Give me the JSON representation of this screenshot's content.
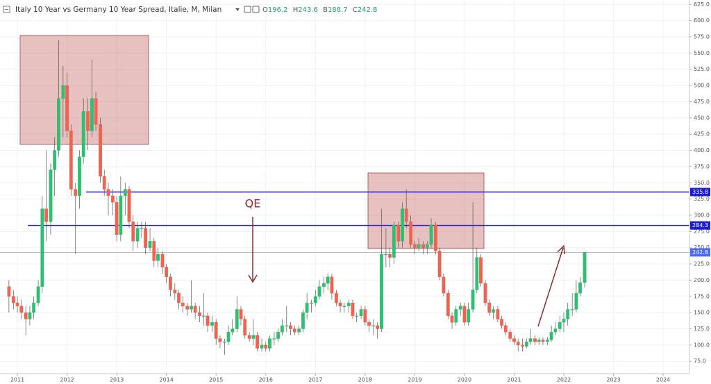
{
  "chart_data": {
    "type": "candlestick",
    "title": "Italy 10 Year vs Germany 10 Year Spread, Italie, M, Milan",
    "ohlc_labels": [
      "O",
      "H",
      "B",
      "C"
    ],
    "ohlc_values": [
      196.2,
      243.6,
      188.7,
      242.8
    ],
    "annotation": "QE",
    "colors": {
      "up": "#2fbf71",
      "down": "#ee6352",
      "wick": "#555555",
      "level": "#1c1cd6",
      "last": "#b0b0b0"
    },
    "x": [
      2010.83,
      2010.92,
      2011.0,
      2011.08,
      2011.17,
      2011.25,
      2011.33,
      2011.42,
      2011.5,
      2011.58,
      2011.67,
      2011.75,
      2011.83,
      2011.92,
      2012.0,
      2012.08,
      2012.17,
      2012.25,
      2012.33,
      2012.42,
      2012.5,
      2012.58,
      2012.67,
      2012.75,
      2012.83,
      2012.92,
      2013.0,
      2013.08,
      2013.17,
      2013.25,
      2013.33,
      2013.42,
      2013.5,
      2013.58,
      2013.67,
      2013.75,
      2013.83,
      2013.92,
      2014.0,
      2014.08,
      2014.17,
      2014.25,
      2014.33,
      2014.42,
      2014.5,
      2014.58,
      2014.67,
      2014.75,
      2014.83,
      2014.92,
      2015.0,
      2015.08,
      2015.17,
      2015.25,
      2015.33,
      2015.42,
      2015.5,
      2015.58,
      2015.67,
      2015.75,
      2015.83,
      2015.92,
      2016.0,
      2016.08,
      2016.17,
      2016.25,
      2016.33,
      2016.42,
      2016.5,
      2016.58,
      2016.67,
      2016.75,
      2016.83,
      2016.92,
      2017.0,
      2017.08,
      2017.17,
      2017.25,
      2017.33,
      2017.42,
      2017.5,
      2017.58,
      2017.67,
      2017.75,
      2017.83,
      2017.92,
      2018.0,
      2018.08,
      2018.17,
      2018.25,
      2018.33,
      2018.42,
      2018.5,
      2018.58,
      2018.67,
      2018.75,
      2018.83,
      2018.92,
      2019.0,
      2019.08,
      2019.17,
      2019.25,
      2019.33,
      2019.42,
      2019.5,
      2019.58,
      2019.67,
      2019.75,
      2019.83,
      2019.92,
      2020.0,
      2020.08,
      2020.17,
      2020.25,
      2020.33,
      2020.42,
      2020.5,
      2020.58,
      2020.67,
      2020.75,
      2020.83,
      2020.92,
      2021.0,
      2021.08,
      2021.17,
      2021.25,
      2021.33,
      2021.42,
      2021.5,
      2021.58,
      2021.67,
      2021.75,
      2021.83,
      2021.92,
      2022.0,
      2022.08,
      2022.17,
      2022.25,
      2022.33,
      2022.42
    ],
    "candles": [
      [
        190,
        200,
        150,
        175
      ],
      [
        175,
        185,
        155,
        165
      ],
      [
        165,
        175,
        150,
        160
      ],
      [
        160,
        170,
        140,
        150
      ],
      [
        150,
        160,
        115,
        140
      ],
      [
        140,
        160,
        130,
        150
      ],
      [
        150,
        175,
        140,
        165
      ],
      [
        165,
        200,
        160,
        190
      ],
      [
        190,
        330,
        180,
        310
      ],
      [
        310,
        400,
        260,
        290
      ],
      [
        290,
        380,
        270,
        370
      ],
      [
        370,
        420,
        330,
        400
      ],
      [
        400,
        570,
        390,
        480
      ],
      [
        480,
        530,
        420,
        500
      ],
      [
        500,
        520,
        420,
        430
      ],
      [
        430,
        440,
        330,
        340
      ],
      [
        340,
        350,
        240,
        330
      ],
      [
        330,
        400,
        310,
        390
      ],
      [
        390,
        480,
        380,
        460
      ],
      [
        460,
        480,
        400,
        430
      ],
      [
        430,
        540,
        420,
        480
      ],
      [
        480,
        490,
        430,
        440
      ],
      [
        440,
        450,
        350,
        360
      ],
      [
        360,
        370,
        330,
        340
      ],
      [
        340,
        350,
        300,
        330
      ],
      [
        330,
        340,
        300,
        320
      ],
      [
        320,
        330,
        260,
        270
      ],
      [
        270,
        360,
        260,
        330
      ],
      [
        330,
        350,
        300,
        340
      ],
      [
        340,
        345,
        280,
        290
      ],
      [
        290,
        300,
        245,
        260
      ],
      [
        260,
        290,
        250,
        280
      ],
      [
        280,
        290,
        265,
        280
      ],
      [
        280,
        290,
        240,
        250
      ],
      [
        250,
        280,
        245,
        260
      ],
      [
        260,
        265,
        220,
        230
      ],
      [
        230,
        250,
        220,
        240
      ],
      [
        240,
        245,
        210,
        220
      ],
      [
        220,
        225,
        195,
        205
      ],
      [
        205,
        210,
        175,
        185
      ],
      [
        185,
        195,
        170,
        180
      ],
      [
        180,
        185,
        155,
        165
      ],
      [
        165,
        175,
        150,
        160
      ],
      [
        160,
        165,
        145,
        155
      ],
      [
        155,
        200,
        150,
        160
      ],
      [
        160,
        165,
        140,
        150
      ],
      [
        150,
        160,
        135,
        145
      ],
      [
        145,
        180,
        130,
        145
      ],
      [
        145,
        150,
        120,
        130
      ],
      [
        130,
        145,
        120,
        135
      ],
      [
        135,
        140,
        100,
        110
      ],
      [
        110,
        115,
        95,
        105
      ],
      [
        105,
        110,
        85,
        105
      ],
      [
        105,
        130,
        100,
        120
      ],
      [
        120,
        140,
        115,
        125
      ],
      [
        125,
        175,
        120,
        155
      ],
      [
        155,
        160,
        130,
        140
      ],
      [
        140,
        145,
        110,
        115
      ],
      [
        115,
        120,
        105,
        110
      ],
      [
        110,
        140,
        100,
        115
      ],
      [
        115,
        120,
        90,
        95
      ],
      [
        95,
        110,
        90,
        100
      ],
      [
        100,
        105,
        90,
        95
      ],
      [
        95,
        115,
        90,
        110
      ],
      [
        110,
        120,
        100,
        110
      ],
      [
        110,
        125,
        105,
        120
      ],
      [
        120,
        140,
        115,
        130
      ],
      [
        130,
        160,
        120,
        130
      ],
      [
        130,
        135,
        115,
        125
      ],
      [
        125,
        130,
        115,
        120
      ],
      [
        120,
        130,
        115,
        125
      ],
      [
        125,
        155,
        120,
        150
      ],
      [
        150,
        180,
        140,
        165
      ],
      [
        165,
        170,
        150,
        165
      ],
      [
        165,
        185,
        160,
        175
      ],
      [
        175,
        200,
        170,
        190
      ],
      [
        190,
        205,
        180,
        195
      ],
      [
        195,
        210,
        185,
        205
      ],
      [
        205,
        210,
        170,
        180
      ],
      [
        180,
        185,
        160,
        165
      ],
      [
        165,
        170,
        150,
        160
      ],
      [
        160,
        165,
        150,
        160
      ],
      [
        160,
        170,
        150,
        165
      ],
      [
        165,
        170,
        140,
        145
      ],
      [
        145,
        150,
        135,
        145
      ],
      [
        145,
        160,
        140,
        155
      ],
      [
        155,
        160,
        130,
        135
      ],
      [
        135,
        140,
        120,
        130
      ],
      [
        130,
        140,
        115,
        130
      ],
      [
        130,
        135,
        110,
        125
      ],
      [
        125,
        310,
        120,
        240
      ],
      [
        240,
        280,
        220,
        240
      ],
      [
        240,
        250,
        220,
        235
      ],
      [
        235,
        290,
        225,
        285
      ],
      [
        285,
        290,
        250,
        260
      ],
      [
        260,
        320,
        250,
        310
      ],
      [
        310,
        340,
        280,
        290
      ],
      [
        290,
        300,
        250,
        255
      ],
      [
        255,
        260,
        240,
        250
      ],
      [
        250,
        265,
        245,
        255
      ],
      [
        255,
        260,
        240,
        250
      ],
      [
        250,
        260,
        240,
        255
      ],
      [
        255,
        295,
        250,
        285
      ],
      [
        285,
        290,
        240,
        245
      ],
      [
        245,
        250,
        200,
        205
      ],
      [
        205,
        210,
        175,
        180
      ],
      [
        180,
        185,
        140,
        145
      ],
      [
        145,
        150,
        125,
        135
      ],
      [
        135,
        160,
        130,
        155
      ],
      [
        155,
        165,
        145,
        160
      ],
      [
        160,
        165,
        130,
        135
      ],
      [
        135,
        165,
        130,
        155
      ],
      [
        155,
        320,
        150,
        185
      ],
      [
        185,
        250,
        180,
        235
      ],
      [
        235,
        240,
        190,
        195
      ],
      [
        195,
        200,
        160,
        165
      ],
      [
        165,
        170,
        145,
        150
      ],
      [
        150,
        160,
        140,
        155
      ],
      [
        155,
        160,
        135,
        140
      ],
      [
        140,
        145,
        125,
        130
      ],
      [
        130,
        135,
        115,
        120
      ],
      [
        120,
        125,
        105,
        110
      ],
      [
        110,
        115,
        100,
        105
      ],
      [
        105,
        110,
        90,
        100
      ],
      [
        100,
        110,
        90,
        98
      ],
      [
        98,
        110,
        95,
        105
      ],
      [
        105,
        125,
        100,
        110
      ],
      [
        110,
        115,
        100,
        105
      ],
      [
        105,
        112,
        100,
        108
      ],
      [
        108,
        112,
        100,
        105
      ],
      [
        105,
        112,
        100,
        108
      ],
      [
        108,
        130,
        105,
        120
      ],
      [
        120,
        135,
        115,
        125
      ],
      [
        125,
        145,
        120,
        135
      ],
      [
        135,
        150,
        120,
        140
      ],
      [
        140,
        165,
        130,
        155
      ],
      [
        155,
        180,
        145,
        155
      ],
      [
        155,
        200,
        150,
        180
      ],
      [
        180,
        205,
        175,
        196.2
      ],
      [
        196.2,
        243.6,
        188.7,
        242.8
      ]
    ],
    "xlim": [
      2010.65,
      2024.53
    ],
    "xticks": [
      2011,
      2012,
      2013,
      2014,
      2015,
      2016,
      2017,
      2018,
      2019,
      2020,
      2021,
      2022,
      2023,
      2024
    ],
    "ylim": [
      56,
      631.7
    ],
    "yticks": [
      {
        "value": 75,
        "label": "75.0"
      },
      {
        "value": 100,
        "label": "100.0"
      },
      {
        "value": 125,
        "label": "125.0"
      },
      {
        "value": 150,
        "label": "150.0"
      },
      {
        "value": 175,
        "label": "175.0"
      },
      {
        "value": 200,
        "label": "200.0"
      },
      {
        "value": 225,
        "label": "225.0"
      },
      {
        "value": 250,
        "label": "250.0"
      },
      {
        "value": 275,
        "label": "275.0"
      },
      {
        "value": 300,
        "label": "300.0"
      },
      {
        "value": 325,
        "label": "325.0"
      },
      {
        "value": 350,
        "label": "350.0"
      },
      {
        "value": 375,
        "label": "375.0"
      },
      {
        "value": 400,
        "label": "400.0"
      },
      {
        "value": 425,
        "label": "425.0"
      },
      {
        "value": 450,
        "label": "450.0"
      },
      {
        "value": 475,
        "label": "475.0"
      },
      {
        "value": 500,
        "label": "500.0"
      },
      {
        "value": 525,
        "label": "525.0"
      },
      {
        "value": 550,
        "label": "550.0"
      },
      {
        "value": 575,
        "label": "575.0"
      },
      {
        "value": 600,
        "label": "600.0"
      },
      {
        "value": 625,
        "label": "625.0"
      }
    ],
    "levels": [
      335.8,
      284.3
    ],
    "last_price": 242.8
  }
}
